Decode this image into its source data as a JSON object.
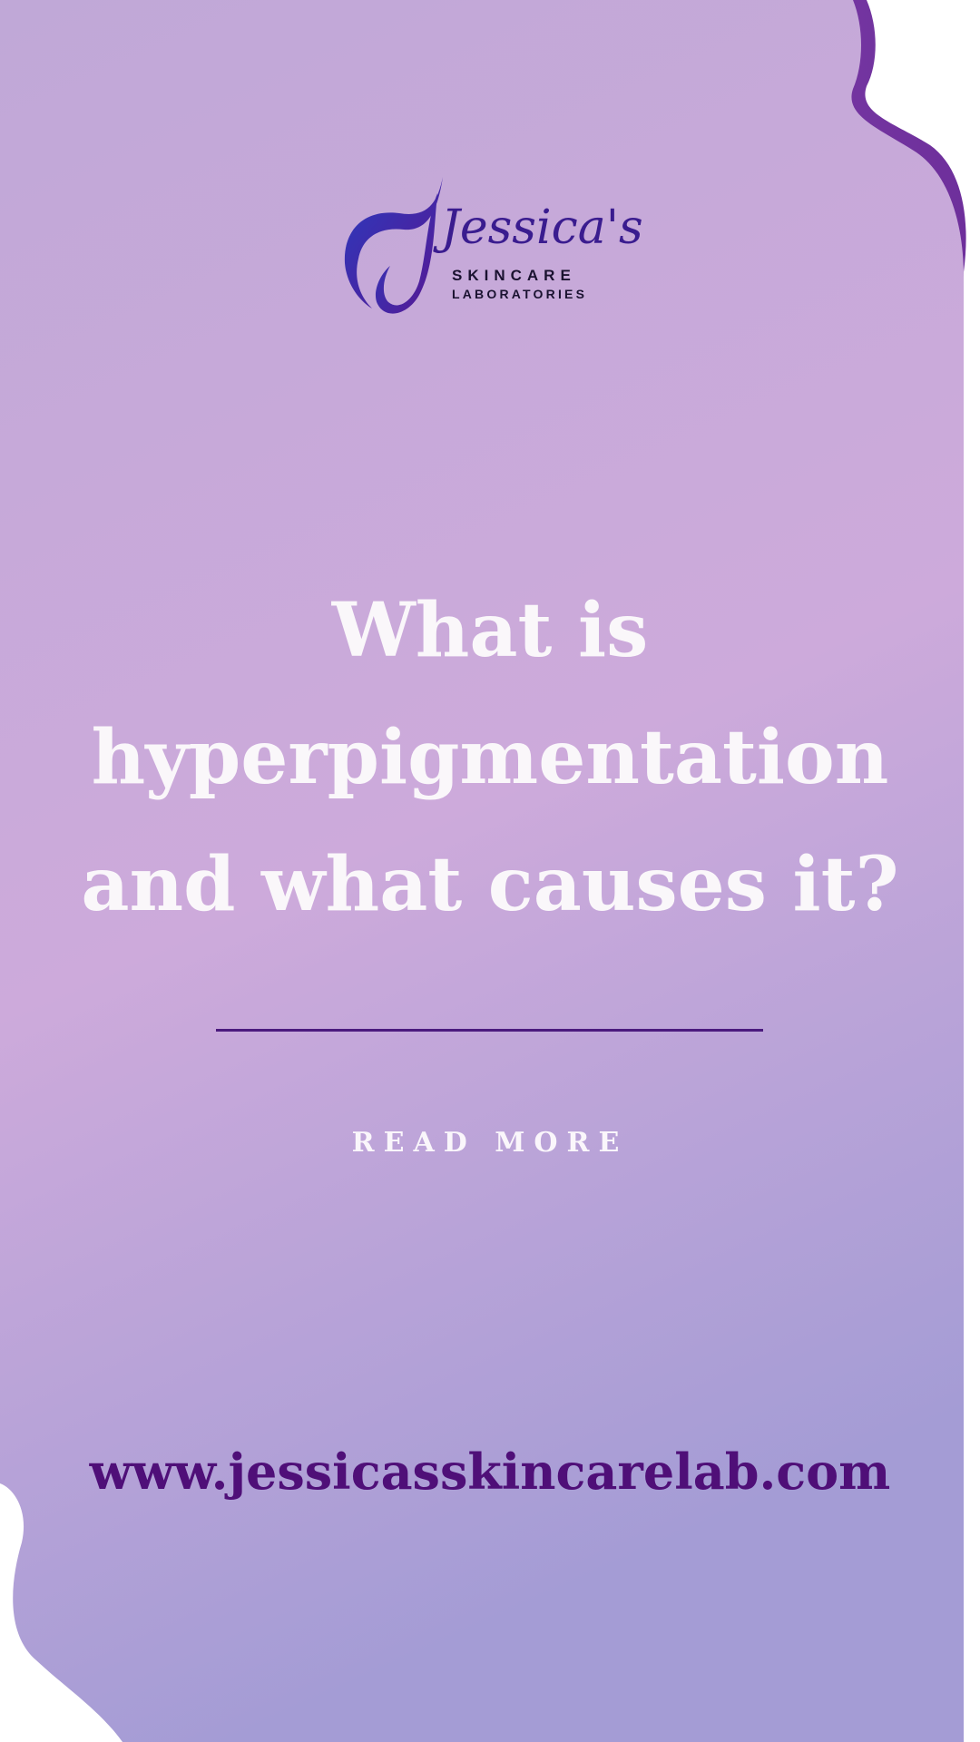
{
  "brand": {
    "name": "Jessica's",
    "line1": "SKINCARE",
    "line2": "LABORATORIES"
  },
  "headline": {
    "line1": "What is",
    "line2": "hyperpigmentation",
    "line3": "and what causes it?"
  },
  "cta": {
    "label": "READ MORE"
  },
  "website": {
    "url": "www.jessicasskincarelab.com"
  },
  "colors": {
    "background_top": "#c2a7d8",
    "background_mid": "#ccaadb",
    "background_bottom": "#a39bd4",
    "wave_edge": "#7a3fa8",
    "headline_text": "#faf7fa",
    "divider": "#4b1a7e",
    "website_text": "#4f0f78",
    "logo_text": "#3a1c8f"
  },
  "icons": {
    "logo_mark": "leaf-j-icon"
  }
}
